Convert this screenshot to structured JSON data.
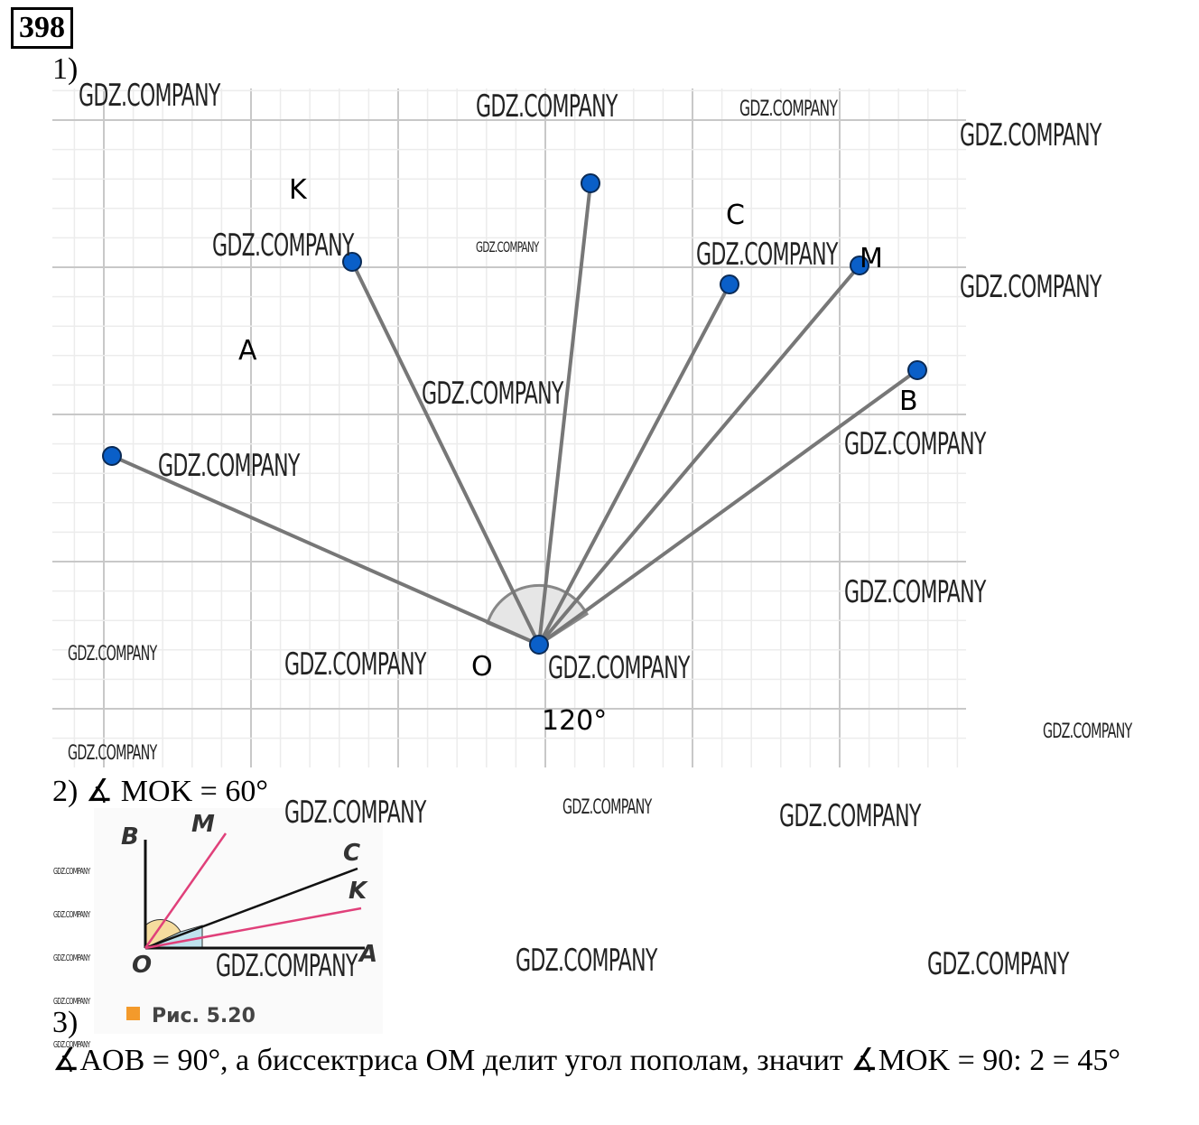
{
  "problem_number": "398",
  "part1": {
    "label": "1)",
    "figure": {
      "point_labels": {
        "K": "K",
        "A": "A",
        "C": "C",
        "M": "M",
        "B": "B",
        "O": "O"
      },
      "angle_label": "120°",
      "point_color": "#0a5fc8",
      "ray_color": "#777777"
    }
  },
  "part2": {
    "label": "2) ∡ MOK = 60°",
    "figure": {
      "labels": {
        "B": "B",
        "M": "M",
        "C": "C",
        "K": "K",
        "A": "A",
        "O": "O"
      },
      "caption": "Рис. 5.20",
      "bisector_color": "#e0407a",
      "caption_marker_color": "#f39a2b"
    }
  },
  "part3": {
    "label": "3)",
    "text": "∡AOB = 90°, а биссектриса OM делит угол пополам, значит ∡MOK =  90: 2 = 45°"
  },
  "watermark": "GDZ.COMPANY"
}
